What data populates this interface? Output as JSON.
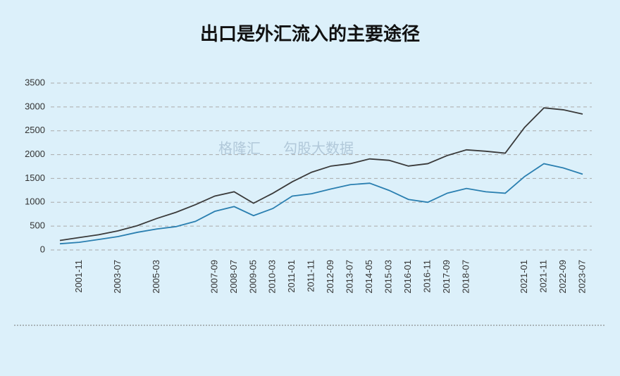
{
  "chart_data": {
    "type": "line",
    "title": "出口是外汇流入的主要途径",
    "watermark": [
      "格隆汇",
      "勾股大数据"
    ],
    "categories": [
      null,
      "2001-11",
      null,
      "2003-07",
      null,
      "2005-03",
      null,
      null,
      "2007-09",
      "2008-07",
      "2009-05",
      "2010-03",
      "2011-01",
      "2011-11",
      "2012-09",
      "2013-07",
      "2014-05",
      "2015-03",
      "2016-01",
      "2016-11",
      "2017-09",
      "2018-07",
      null,
      null,
      "2021-01",
      "2021-11",
      "2022-09",
      "2023-07"
    ],
    "series": [
      {
        "color": "#3a3a3a",
        "values": [
          200,
          260,
          320,
          400,
          510,
          660,
          790,
          950,
          1130,
          1220,
          980,
          1190,
          1430,
          1630,
          1760,
          1810,
          1910,
          1880,
          1760,
          1810,
          1980,
          2100,
          2070,
          2030,
          2570,
          2980,
          2940,
          2850
        ]
      },
      {
        "color": "#2a7fb0",
        "values": [
          130,
          160,
          220,
          280,
          370,
          440,
          490,
          600,
          810,
          910,
          720,
          870,
          1130,
          1180,
          1280,
          1370,
          1400,
          1250,
          1060,
          1000,
          1190,
          1290,
          1220,
          1190,
          1540,
          1810,
          1720,
          1590
        ]
      }
    ],
    "ylim": [
      0,
      3500
    ],
    "yticks": [
      0,
      500,
      1000,
      1500,
      2000,
      2500,
      3000,
      3500
    ],
    "grid": true
  }
}
